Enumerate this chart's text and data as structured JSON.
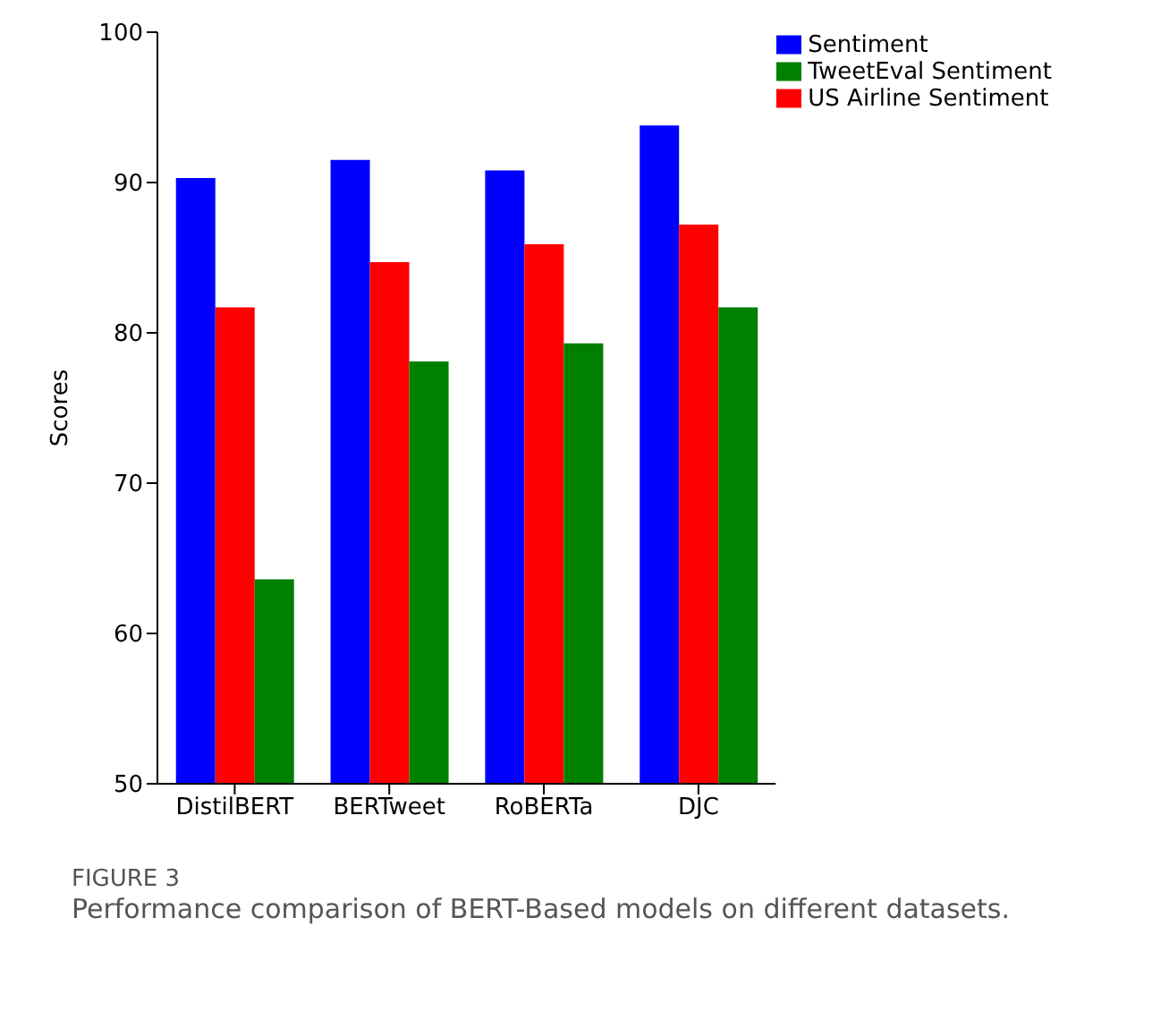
{
  "chart_data": {
    "type": "bar",
    "title": "FIGURE 3",
    "subtitle": "Performance comparison of BERT-Based models on different datasets.",
    "ylabel": "Scores",
    "categories": [
      "DistilBERT",
      "BERTweet",
      "RoBERTa",
      "DJC"
    ],
    "series": [
      {
        "name": "Sentiment",
        "color": "#0000ff",
        "values": [
          90.3,
          91.5,
          90.8,
          93.8
        ]
      },
      {
        "name": "US Airline Sentiment",
        "color": "#ff0000",
        "values": [
          81.7,
          84.7,
          85.9,
          87.2
        ]
      },
      {
        "name": "TweetEval Sentiment",
        "color": "#008000",
        "values": [
          63.6,
          78.1,
          79.3,
          81.7
        ]
      }
    ],
    "ylim": [
      50,
      100
    ],
    "yticks": [
      50,
      60,
      70,
      80,
      90,
      100
    ],
    "legend": "top right"
  }
}
